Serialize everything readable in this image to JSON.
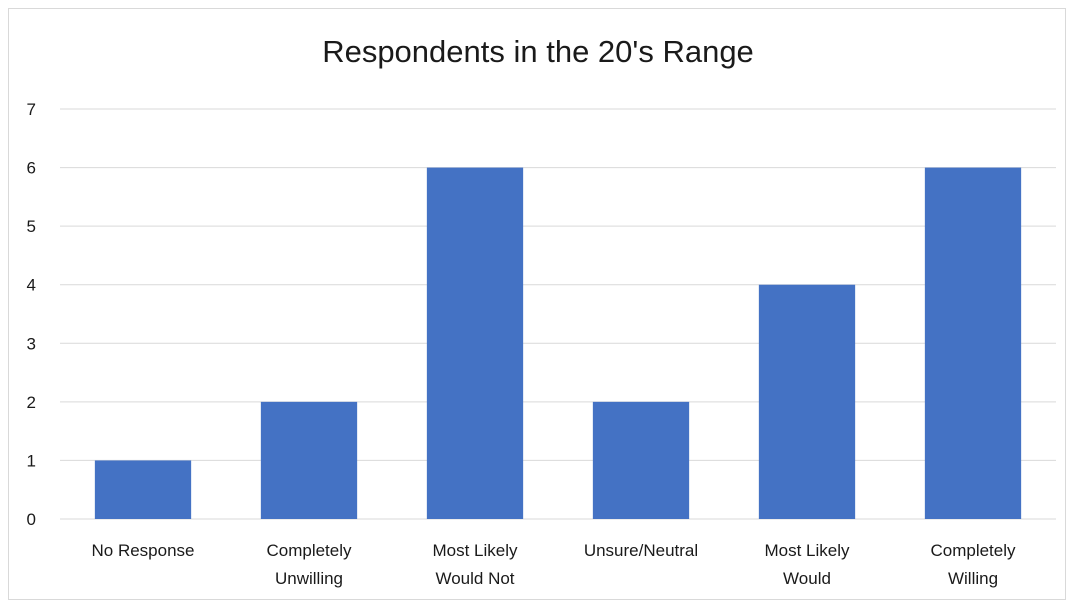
{
  "chart_data": {
    "type": "bar",
    "title": "Respondents in the 20's Range",
    "categories": [
      [
        "No Response"
      ],
      [
        "Completely",
        "Unwilling"
      ],
      [
        "Most Likely",
        "Would Not"
      ],
      [
        "Unsure/Neutral"
      ],
      [
        "Most Likely",
        "Would"
      ],
      [
        "Completely",
        "Willing"
      ]
    ],
    "values": [
      1,
      2,
      6,
      2,
      4,
      6
    ],
    "ylim": [
      0,
      7
    ],
    "yticks": [
      "0",
      "1",
      "2",
      "3",
      "4",
      "5",
      "6",
      "7"
    ],
    "grid": true,
    "bar_color": "#4472c4",
    "grid_color": "#d9d9d9"
  }
}
